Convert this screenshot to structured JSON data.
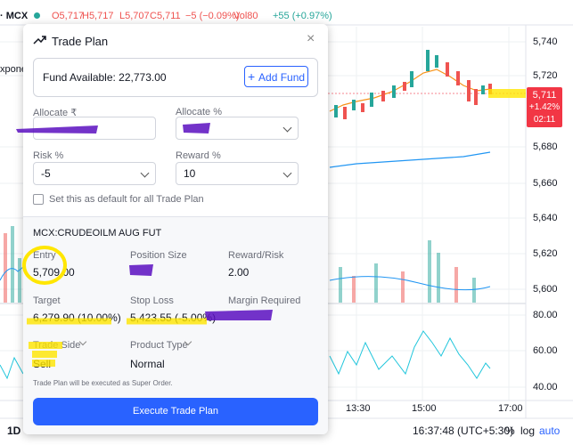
{
  "top_bar": {
    "symbol": "· MCX",
    "open": "O5,717",
    "high": "H5,717",
    "low": "L5,707",
    "close": "C5,711",
    "change": "−5 (−0.09%)",
    "volume": "Vol80",
    "volume_change": "+55 (+0.97%)"
  },
  "left_label": "xponen",
  "price_axis": [
    "5,740",
    "5,720",
    "5,680",
    "5,660",
    "5,640",
    "5,620",
    "5,600"
  ],
  "price_tag": {
    "price": "5,711",
    "change": "+1.42%",
    "countdown": "02:11"
  },
  "oscillator_axis": [
    "80.00",
    "60.00",
    "40.00"
  ],
  "time_axis": [
    "13:30",
    "15:00",
    "17:00"
  ],
  "bottom_bar": {
    "interval": "1D",
    "clock": "16:37:48 (UTC+5:30)",
    "percent": "%",
    "log": "log",
    "auto": "auto"
  },
  "modal": {
    "title": "Trade Plan",
    "fund_available": "Fund Available: 22,773.00",
    "add_fund": "Add Fund",
    "allocate_amount_label": "Allocate ₹",
    "allocate_percent_label": "Allocate %",
    "risk_label": "Risk %",
    "risk_value": "-5",
    "reward_label": "Reward %",
    "reward_value": "10",
    "default_checkbox": "Set this as default for all Trade Plan",
    "instrument": "MCX:CRUDEOILM AUG FUT",
    "entry_label": "Entry",
    "entry_value": "5,709.00",
    "position_size_label": "Position Size",
    "reward_risk_label": "Reward/Risk",
    "reward_risk_value": "2.00",
    "target_label": "Target",
    "target_value": "6,279.90 (10.00%)",
    "stop_loss_label": "Stop Loss",
    "stop_loss_value": "5,423.55 (-5.00%)",
    "margin_label": "Margin Required",
    "trade_side_label": "Trade Side",
    "trade_side_value": "Sell",
    "product_type_label": "Product Type",
    "product_type_value": "Normal",
    "note": "Trade Plan will be executed as Super Order.",
    "execute_button": "Execute Trade Plan"
  }
}
